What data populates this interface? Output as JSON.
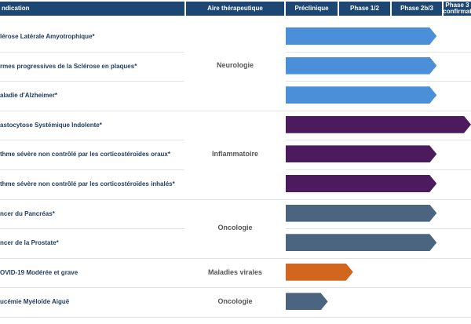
{
  "headers": [
    "ndication",
    "Aire thérapeutique",
    "Préclinique",
    "Phase 1/2",
    "Phase 2b/3",
    "Phase 3\nconfirmat"
  ],
  "areas": [
    {
      "label": "Neurologie",
      "rows": [
        0,
        1,
        2
      ]
    },
    {
      "label": "Inflammatoire",
      "rows": [
        3,
        4,
        5
      ]
    },
    {
      "label": "Oncologie",
      "rows": [
        6,
        7
      ]
    },
    {
      "label": "Maladies virales",
      "rows": [
        8
      ]
    },
    {
      "label": "Oncologie",
      "rows": [
        9
      ]
    }
  ],
  "rows": [
    {
      "indication": "lérose Latérale Amyotrophique*",
      "progress_phases": 2.87,
      "color": "#4a8fd8"
    },
    {
      "indication": "rmes progressives de la Sclérose en plaques*",
      "progress_phases": 2.87,
      "color": "#4a8fd8"
    },
    {
      "indication": "aladie d'Alzheimer*",
      "progress_phases": 2.87,
      "color": "#4a8fd8"
    },
    {
      "indication": "astocytose Systémique Indolente*",
      "progress_phases": 4.2,
      "color": "#4b1b5e"
    },
    {
      "indication": "thme sévère non contrôlé par les corticostéroïdes oraux*",
      "progress_phases": 2.87,
      "color": "#4b1b5e"
    },
    {
      "indication": "thme sévère non contrôlé par les corticostéroïdes inhalés*",
      "progress_phases": 2.87,
      "color": "#4b1b5e"
    },
    {
      "indication": "ncer du Pancréas*",
      "progress_phases": 2.87,
      "color": "#4b6580"
    },
    {
      "indication": "ncer de la Prostate*",
      "progress_phases": 2.87,
      "color": "#4b6580"
    },
    {
      "indication": "OVID-19 Modérée et grave",
      "progress_phases": 1.28,
      "color": "#d2661f"
    },
    {
      "indication": "ucémie Myéloïde Aiguë",
      "progress_phases": 0.8,
      "color": "#4b6580"
    }
  ]
}
